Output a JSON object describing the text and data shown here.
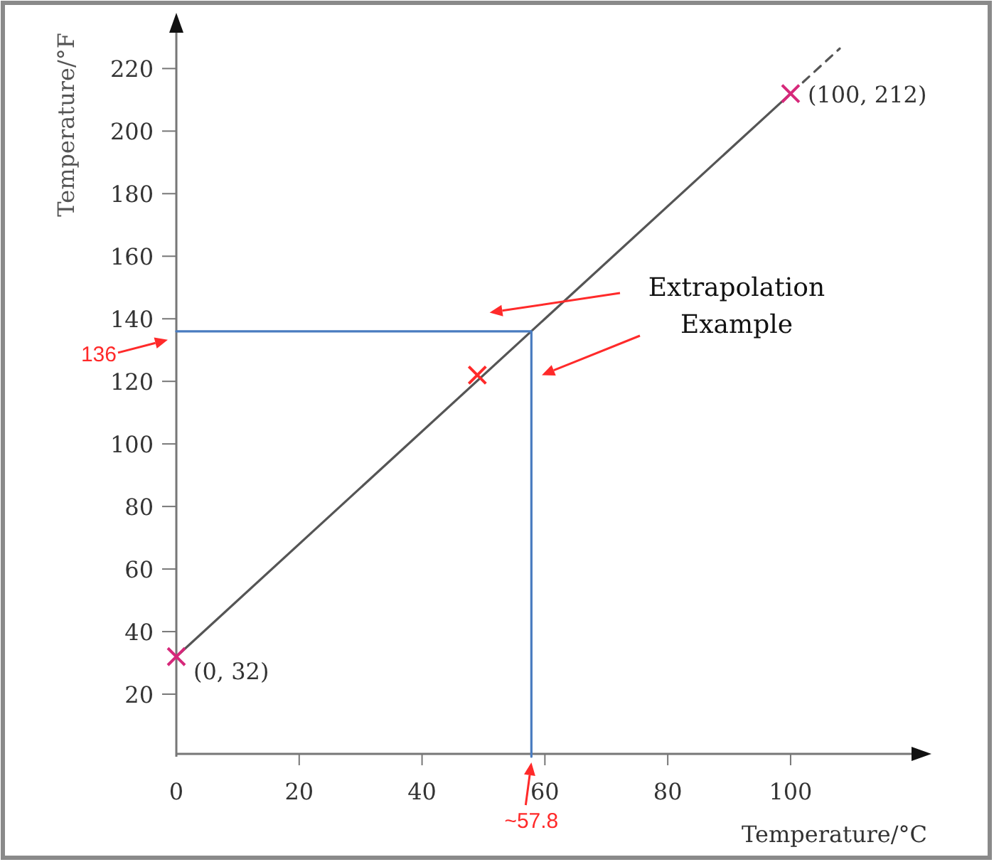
{
  "chart_data": {
    "type": "line",
    "xlabel": "Temperature/°C",
    "ylabel": "Temperature/°F",
    "xlim": [
      0,
      122
    ],
    "ylim": [
      0,
      236
    ],
    "xticks": [
      0,
      20,
      40,
      60,
      80,
      100
    ],
    "yticks": [
      20,
      40,
      60,
      80,
      100,
      120,
      140,
      160,
      180,
      200,
      220
    ],
    "grid": false,
    "series": [
      {
        "color": "#555555",
        "x": [
          0,
          100
        ],
        "values": [
          32,
          212
        ],
        "line_style": "solid",
        "marker": "none"
      },
      {
        "color": "#555555",
        "x": [
          102,
          108
        ],
        "values": [
          215.6,
          226.4
        ],
        "line_style": "dashed",
        "marker": "none"
      },
      {
        "color": "#4a7cc0",
        "x": [
          0,
          57.8,
          57.8
        ],
        "values": [
          136,
          136,
          0
        ],
        "line_style": "solid",
        "marker": "none"
      },
      {
        "type": "scatter",
        "x": [
          0,
          49,
          100
        ],
        "values": [
          32,
          122,
          212
        ],
        "colors": [
          "#d6287a",
          "#ff2a2a",
          "#d6287a"
        ],
        "marker": "cross"
      }
    ],
    "annotations": [
      {
        "text": "(0, 32)",
        "x": 0,
        "y": 32
      },
      {
        "text": "(100, 212)",
        "x": 100,
        "y": 212
      },
      {
        "text": "136",
        "x": 0,
        "y": 136
      },
      {
        "text": "~57.8",
        "x": 57.8,
        "y": 0
      },
      "Extrapolation Example"
    ]
  }
}
